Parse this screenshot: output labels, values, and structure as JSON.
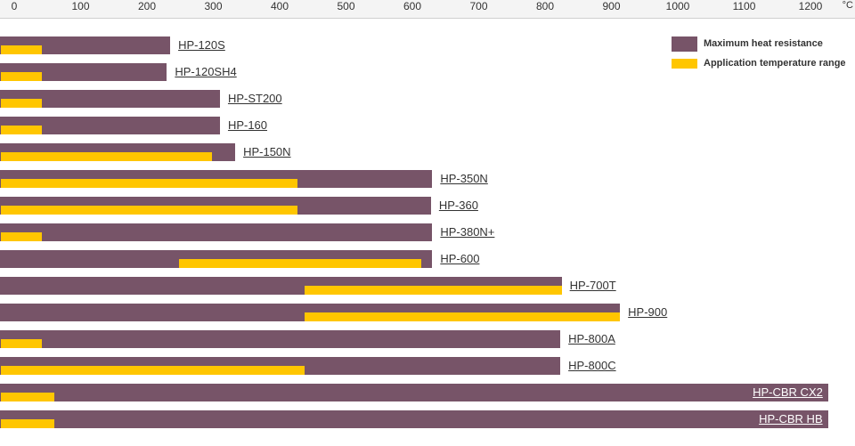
{
  "unit": "°C",
  "colors": {
    "max": "#775468",
    "app": "#ffc600",
    "link_on_white": "#333333",
    "link_on_bar": "#ffffff"
  },
  "legend": {
    "max_label": "Maximum heat resistance",
    "app_label": "Application temperature range"
  },
  "chart_data": {
    "type": "bar",
    "orientation": "horizontal",
    "title": "",
    "xlabel": "°C",
    "ylabel": "",
    "xlim": [
      -20,
      1280
    ],
    "x_ticks": [
      0,
      100,
      200,
      300,
      400,
      500,
      600,
      700,
      800,
      900,
      1000,
      1100,
      1200
    ],
    "grid": false,
    "legend_position": "top-right",
    "categories": [
      "HP-120S",
      "HP-120SH4",
      "HP-ST200",
      "HP-160",
      "HP-150N",
      "HP-350N",
      "HP-360",
      "HP-380N+",
      "HP-600",
      "HP-700T",
      "HP-900",
      "HP-800A",
      "HP-800C",
      "HP-CBR CX2",
      "HP-CBR HB"
    ],
    "series": [
      {
        "name": "Maximum heat resistance",
        "values": [
          235,
          230,
          310,
          310,
          333,
          630,
          628,
          630,
          630,
          825,
          913,
          823,
          823,
          1227,
          1227
        ]
      },
      {
        "name": "Application temperature range",
        "ranges": [
          [
            -20,
            42
          ],
          [
            -20,
            41
          ],
          [
            -20,
            42
          ],
          [
            -20,
            42
          ],
          [
            -20,
            298
          ],
          [
            -20,
            427
          ],
          [
            -20,
            427
          ],
          [
            -20,
            42
          ],
          [
            248,
            614
          ],
          [
            437,
            825
          ],
          [
            437,
            913
          ],
          [
            -20,
            42
          ],
          [
            -20,
            437
          ],
          [
            -20,
            60
          ],
          [
            -20,
            60
          ]
        ]
      }
    ]
  }
}
